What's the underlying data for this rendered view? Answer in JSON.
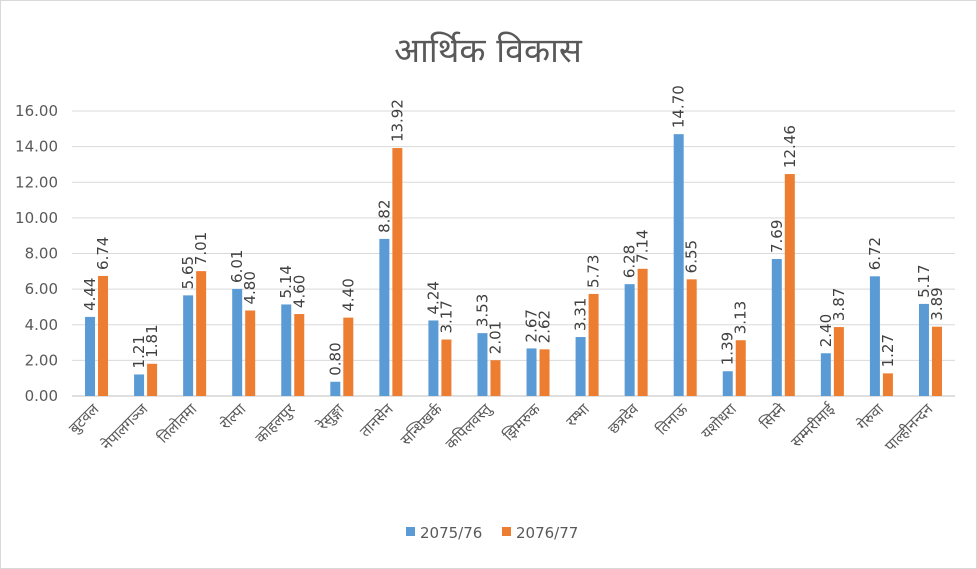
{
  "chart_data": {
    "type": "bar",
    "title": "आर्थिक विकास",
    "categories": [
      "बुटवल",
      "नेपालगञ्ज",
      "तिलोतमा",
      "रोल्पा",
      "कोहलपुर",
      "रेसुङ्गा",
      "तानसेन",
      "सन्धिखर्क",
      "कपिलवस्तु",
      "झिमरुक",
      "रम्भा",
      "छत्रदेव",
      "तिनाऊ",
      "यशोधरा",
      "सिस्ने",
      "सम्मरीमाई",
      "गेरुवा",
      "पाल्हीनन्दन"
    ],
    "series": [
      {
        "name": "2075/76",
        "color": "#5b9bd5",
        "values": [
          4.44,
          1.21,
          5.65,
          6.01,
          5.14,
          0.8,
          8.82,
          4.24,
          3.53,
          2.67,
          3.31,
          6.28,
          14.7,
          1.39,
          7.69,
          2.4,
          6.72,
          5.17
        ],
        "labels": [
          "4.44",
          "1.21",
          "5.65",
          "6.01",
          "5.14",
          "0.80",
          "8.82",
          "4.24",
          "3.53",
          "2.67",
          "3.31",
          "6.28",
          "14.70",
          "1.39",
          "7.69",
          "2.40",
          "6.72",
          "5.17"
        ]
      },
      {
        "name": "2076/77",
        "color": "#ed7d31",
        "values": [
          6.74,
          1.81,
          7.01,
          4.8,
          4.6,
          4.4,
          13.92,
          3.17,
          2.01,
          2.62,
          5.73,
          7.14,
          6.55,
          3.13,
          12.46,
          3.87,
          1.27,
          3.89
        ],
        "labels": [
          "6.74",
          "1.81",
          "7.01",
          "4.80",
          "4.60",
          "4.40",
          "13.92",
          "3.17",
          "2.01",
          "2.62",
          "5.73",
          "7.14",
          "6.55",
          "3.13",
          "12.46",
          "3.87",
          "1.27",
          "3.89"
        ]
      }
    ],
    "ylim": [
      0,
      16
    ],
    "yticks": [
      "0.00",
      "2.00",
      "4.00",
      "6.00",
      "8.00",
      "10.00",
      "12.00",
      "14.00",
      "16.00"
    ],
    "grid": true,
    "legend": "bottom"
  }
}
